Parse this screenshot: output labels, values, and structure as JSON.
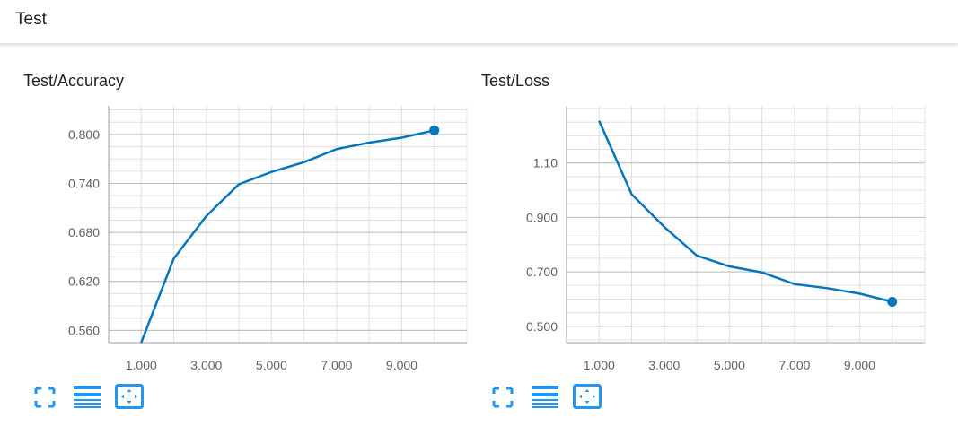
{
  "header": {
    "title": "Test"
  },
  "toolbar": {
    "icons": [
      "fullscreen-icon",
      "data-table-icon",
      "fit-domain-icon"
    ],
    "color": "#2196f3"
  },
  "line_color": "#0277bd",
  "chart_data": [
    {
      "type": "line",
      "title": "Test/Accuracy",
      "xlabel": "",
      "ylabel": "",
      "x": [
        1,
        2,
        3,
        4,
        5,
        6,
        7,
        8,
        9,
        10
      ],
      "x_ticks": [
        "1.000",
        "3.000",
        "5.000",
        "7.000",
        "9.000"
      ],
      "x_tick_values": [
        1,
        3,
        5,
        7,
        9
      ],
      "xlim": [
        0,
        11
      ],
      "y_ticks": [
        "0.560",
        "0.620",
        "0.680",
        "0.740",
        "0.800"
      ],
      "y_tick_values": [
        0.56,
        0.62,
        0.68,
        0.74,
        0.8
      ],
      "ylim": [
        0.545,
        0.835
      ],
      "grid": true,
      "series": [
        {
          "values": [
            0.545,
            0.648,
            0.7,
            0.739,
            0.754,
            0.766,
            0.782,
            0.79,
            0.796,
            0.805
          ]
        }
      ]
    },
    {
      "type": "line",
      "title": "Test/Loss",
      "xlabel": "",
      "ylabel": "",
      "x": [
        1,
        2,
        3,
        4,
        5,
        6,
        7,
        8,
        9,
        10
      ],
      "x_ticks": [
        "1.000",
        "3.000",
        "5.000",
        "7.000",
        "9.000"
      ],
      "x_tick_values": [
        1,
        3,
        5,
        7,
        9
      ],
      "xlim": [
        0,
        11
      ],
      "y_ticks": [
        "0.500",
        "0.700",
        "0.900",
        "1.10"
      ],
      "y_tick_values": [
        0.5,
        0.7,
        0.9,
        1.1
      ],
      "ylim": [
        0.44,
        1.31
      ],
      "grid": true,
      "series": [
        {
          "values": [
            1.255,
            0.985,
            0.865,
            0.76,
            0.72,
            0.698,
            0.655,
            0.64,
            0.62,
            0.59
          ]
        }
      ]
    }
  ]
}
